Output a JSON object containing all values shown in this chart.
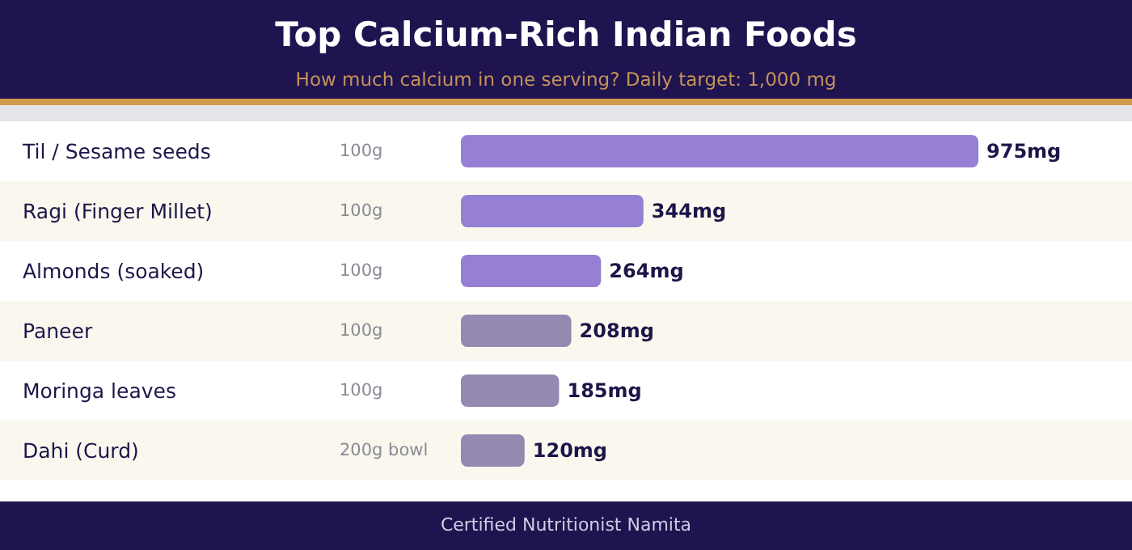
{
  "chart_data": {
    "type": "bar",
    "orientation": "horizontal",
    "title": "Top Calcium-Rich Indian Foods",
    "subtitle": "How much calcium in one serving? Daily target: 1,000 mg",
    "categories": [
      "Til / Sesame seeds",
      "Ragi (Finger Millet)",
      "Almonds (soaked)",
      "Paneer",
      "Moringa leaves",
      "Dahi (Curd)"
    ],
    "values": [
      975,
      344,
      264,
      208,
      185,
      120
    ],
    "value_labels": [
      "975mg",
      "344mg",
      "264mg",
      "208mg",
      "185mg",
      "120mg"
    ],
    "colors": [
      "#9580d4",
      "#9580d4",
      "#9580d4",
      "#9389b1",
      "#9389b1",
      "#9389b1"
    ],
    "annotations": [
      "100g",
      "100g",
      "100g",
      "100g",
      "100g",
      "200g bowl",
      "Certified Nutritionist Namita"
    ]
  }
}
